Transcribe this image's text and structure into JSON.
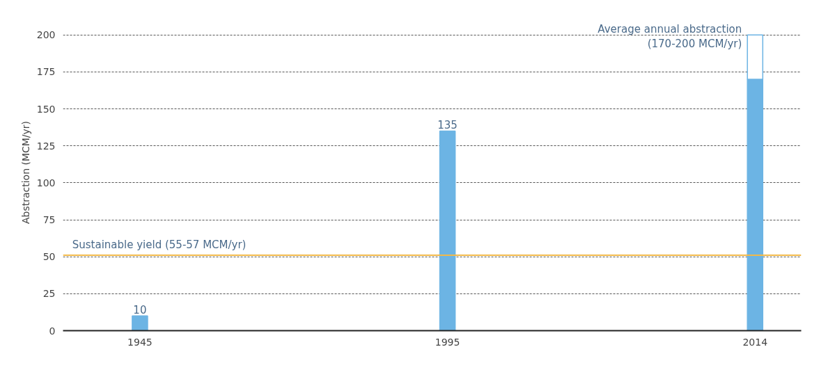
{
  "chart_data": {
    "type": "bar",
    "ylabel": "Abstraction (MCM/yr)",
    "categories": [
      "1945",
      "1995",
      "2014"
    ],
    "series": [
      {
        "color": "#6cb4e4",
        "values": [
          10,
          135,
          170
        ],
        "value_labels": [
          "10",
          "135",
          null
        ]
      },
      {
        "color": "#ffffff",
        "values": [
          null,
          null,
          30
        ]
      }
    ],
    "stacked": true,
    "ylim": [
      0,
      200
    ],
    "yticks": [
      0,
      25,
      50,
      75,
      100,
      125,
      150,
      175,
      200
    ],
    "grid": "y",
    "ref_lines": [
      {
        "axis": "y",
        "value": 51,
        "label": "Sustainable yield (55-57 MCM/yr)",
        "color": "#f0b84a",
        "line_style": "solid"
      }
    ],
    "annotations": [
      {
        "text": "Average annual abstraction\n(170-200 MCM/yr)",
        "x": "2014",
        "y": 200
      }
    ]
  }
}
